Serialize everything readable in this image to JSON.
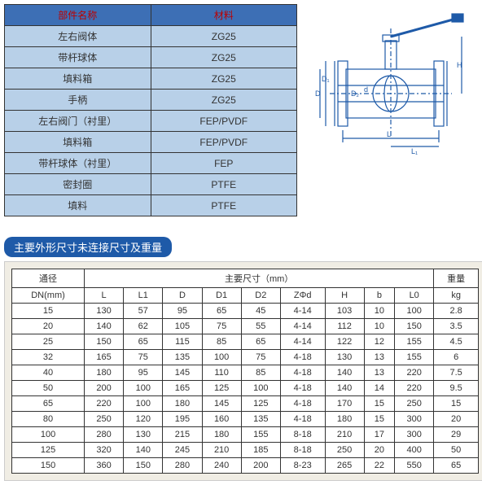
{
  "materials": {
    "headers": [
      "部件名称",
      "材料"
    ],
    "rows": [
      [
        "左右阀体",
        "ZG25"
      ],
      [
        "带杆球体",
        "ZG25"
      ],
      [
        "填料箱",
        "ZG25"
      ],
      [
        "手柄",
        "ZG25"
      ],
      [
        "左右阀门（衬里）",
        "FEP/PVDF"
      ],
      [
        "填料箱",
        "FEP/PVDF"
      ],
      [
        "带杆球体（衬里）",
        "FEP"
      ],
      [
        "密封圈",
        "PTFE"
      ],
      [
        "填料",
        "PTFE"
      ]
    ]
  },
  "section_title": "主要外形尺寸未连接尺寸及重量",
  "dims": {
    "col_group_labels": {
      "dn": "通径",
      "main": "主要尺寸（mm）",
      "weight": "重量"
    },
    "headers": [
      "DN(mm)",
      "L",
      "L1",
      "D",
      "D1",
      "D2",
      "ZΦd",
      "H",
      "b",
      "L0",
      "kg"
    ],
    "rows": [
      [
        "15",
        "130",
        "57",
        "95",
        "65",
        "45",
        "4-14",
        "103",
        "10",
        "100",
        "2.8"
      ],
      [
        "20",
        "140",
        "62",
        "105",
        "75",
        "55",
        "4-14",
        "112",
        "10",
        "150",
        "3.5"
      ],
      [
        "25",
        "150",
        "65",
        "115",
        "85",
        "65",
        "4-14",
        "122",
        "12",
        "155",
        "4.5"
      ],
      [
        "32",
        "165",
        "75",
        "135",
        "100",
        "75",
        "4-18",
        "130",
        "13",
        "155",
        "6"
      ],
      [
        "40",
        "180",
        "95",
        "145",
        "110",
        "85",
        "4-18",
        "140",
        "13",
        "220",
        "7.5"
      ],
      [
        "50",
        "200",
        "100",
        "165",
        "125",
        "100",
        "4-18",
        "140",
        "14",
        "220",
        "9.5"
      ],
      [
        "65",
        "220",
        "100",
        "180",
        "145",
        "125",
        "4-18",
        "170",
        "15",
        "250",
        "15"
      ],
      [
        "80",
        "250",
        "120",
        "195",
        "160",
        "135",
        "4-18",
        "180",
        "15",
        "300",
        "20"
      ],
      [
        "100",
        "280",
        "130",
        "215",
        "180",
        "155",
        "8-18",
        "210",
        "17",
        "300",
        "29"
      ],
      [
        "125",
        "320",
        "140",
        "245",
        "210",
        "185",
        "8-18",
        "250",
        "20",
        "400",
        "50"
      ],
      [
        "150",
        "360",
        "150",
        "280",
        "240",
        "200",
        "8-23",
        "265",
        "22",
        "550",
        "65"
      ]
    ]
  },
  "diagram": {
    "stroke": "#1e5aa8",
    "labels": [
      "D",
      "D₁",
      "D₂",
      "d",
      "L",
      "L₁",
      "H"
    ]
  }
}
